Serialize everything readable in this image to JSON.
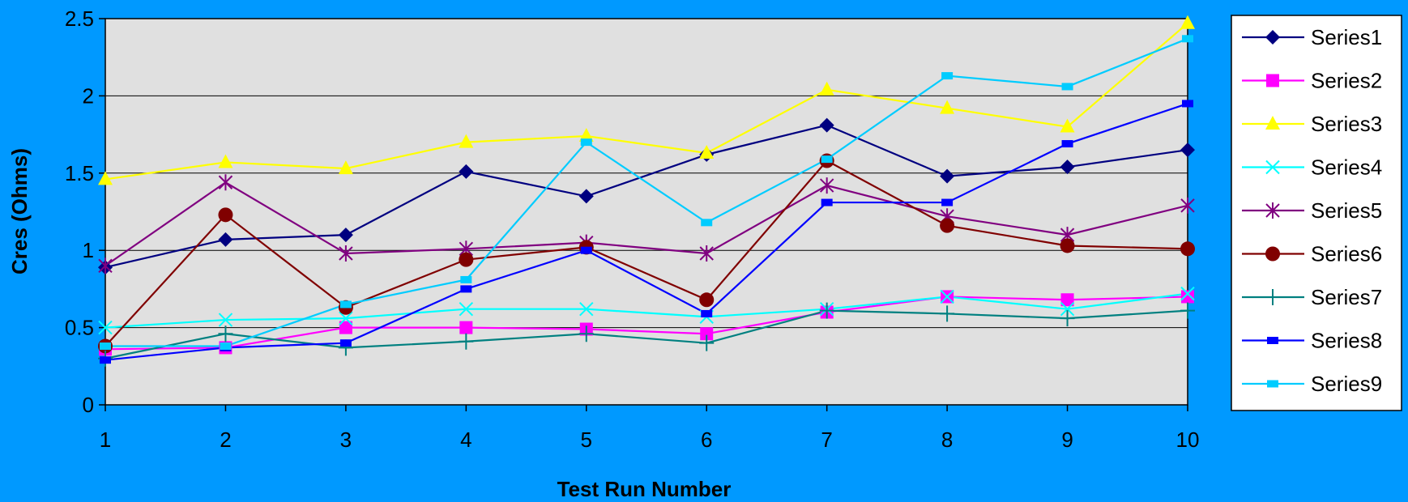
{
  "chart_data": {
    "type": "line",
    "title": "",
    "xlabel": "Test Run Number",
    "ylabel": "Cres (Ohms)",
    "categories": [
      "1",
      "2",
      "3",
      "4",
      "5",
      "6",
      "7",
      "8",
      "9",
      "10"
    ],
    "x": [
      1,
      2,
      3,
      4,
      5,
      6,
      7,
      8,
      9,
      10
    ],
    "ylim": [
      0,
      2.5
    ],
    "yticks": [
      "0",
      "0.5",
      "1",
      "1.5",
      "2",
      "2.5"
    ],
    "ytick_values": [
      0,
      0.5,
      1,
      1.5,
      2,
      2.5
    ],
    "grid": "horizontal",
    "legend_position": "right",
    "plot_background": "#E0E0E0",
    "page_background": "#0099FF",
    "series": [
      {
        "name": "Series1",
        "color": "#000080",
        "marker": "diamond",
        "values": [
          0.89,
          1.07,
          1.1,
          1.51,
          1.35,
          1.62,
          1.81,
          1.48,
          1.54,
          1.65
        ]
      },
      {
        "name": "Series2",
        "color": "#FF00FF",
        "marker": "square",
        "values": [
          0.36,
          0.37,
          0.5,
          0.5,
          0.49,
          0.46,
          0.6,
          0.7,
          0.68,
          0.7
        ]
      },
      {
        "name": "Series3",
        "color": "#FFFF00",
        "marker": "triangle",
        "values": [
          1.46,
          1.57,
          1.53,
          1.7,
          1.74,
          1.63,
          2.04,
          1.92,
          1.8,
          2.47
        ]
      },
      {
        "name": "Series4",
        "color": "#00FFFF",
        "marker": "x",
        "values": [
          0.5,
          0.55,
          0.56,
          0.62,
          0.62,
          0.57,
          0.62,
          0.7,
          0.62,
          0.72
        ]
      },
      {
        "name": "Series5",
        "color": "#800080",
        "marker": "star",
        "values": [
          0.9,
          1.44,
          0.98,
          1.01,
          1.05,
          0.98,
          1.42,
          1.22,
          1.1,
          1.29
        ]
      },
      {
        "name": "Series6",
        "color": "#800000",
        "marker": "circle",
        "values": [
          0.38,
          1.23,
          0.63,
          0.94,
          1.02,
          0.68,
          1.58,
          1.16,
          1.03,
          1.01
        ]
      },
      {
        "name": "Series7",
        "color": "#008080",
        "marker": "plus",
        "values": [
          0.3,
          0.46,
          0.37,
          0.41,
          0.46,
          0.4,
          0.61,
          0.59,
          0.56,
          0.61
        ]
      },
      {
        "name": "Series8",
        "color": "#0000FF",
        "marker": "dash",
        "values": [
          0.29,
          0.37,
          0.4,
          0.75,
          1.0,
          0.59,
          1.31,
          1.31,
          1.69,
          1.95
        ]
      },
      {
        "name": "Series9",
        "color": "#00CCFF",
        "marker": "dash",
        "values": [
          0.38,
          0.38,
          0.65,
          0.81,
          1.7,
          1.18,
          1.59,
          2.13,
          2.06,
          2.37
        ]
      }
    ]
  }
}
